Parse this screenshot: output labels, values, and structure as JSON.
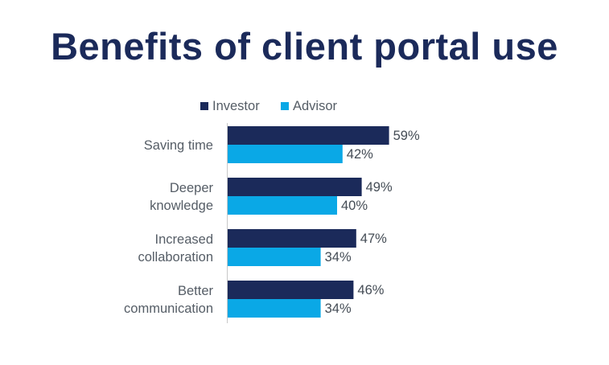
{
  "title": "Benefits of client portal use",
  "colors": {
    "title": "#1b2a5a",
    "investor": "#1b2a5a",
    "advisor": "#0aa8e6",
    "axis": "#c8c8c8"
  },
  "chart_data": {
    "type": "bar",
    "orientation": "horizontal",
    "categories": [
      [
        "Saving time"
      ],
      [
        "Deeper",
        "knowledge"
      ],
      [
        "Increased",
        "collaboration"
      ],
      [
        "Better",
        "communication"
      ]
    ],
    "series": [
      {
        "name": "Investor",
        "values": [
          59,
          49,
          47,
          46
        ],
        "labels": [
          "59%",
          "49%",
          "47%",
          "46%"
        ]
      },
      {
        "name": "Advisor",
        "values": [
          42,
          40,
          34,
          34
        ],
        "labels": [
          "42%",
          "40%",
          "34%",
          "34%"
        ]
      }
    ],
    "xlim": [
      0,
      100
    ],
    "unit": "%",
    "legend": "top",
    "grid": false
  }
}
